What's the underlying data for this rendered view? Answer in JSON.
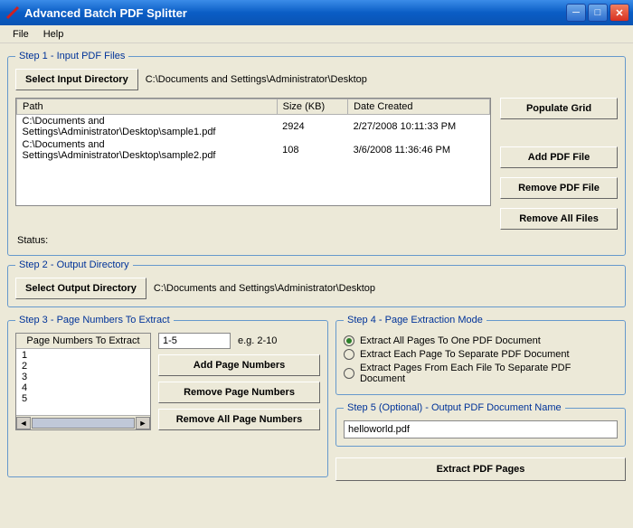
{
  "window": {
    "title": "Advanced Batch PDF Splitter"
  },
  "menu": {
    "file": "File",
    "help": "Help"
  },
  "step1": {
    "legend": "Step 1 - Input PDF Files",
    "select_btn": "Select Input Directory",
    "path": "C:\\Documents and Settings\\Administrator\\Desktop",
    "col_path": "Path",
    "col_size": "Size (KB)",
    "col_date": "Date Created",
    "rows": [
      {
        "path": "C:\\Documents and Settings\\Administrator\\Desktop\\sample1.pdf",
        "size": "2924",
        "date": "2/27/2008 10:11:33 PM"
      },
      {
        "path": "C:\\Documents and Settings\\Administrator\\Desktop\\sample2.pdf",
        "size": "108",
        "date": "3/6/2008 11:36:46 PM"
      }
    ],
    "populate": "Populate Grid",
    "add": "Add PDF File",
    "remove": "Remove PDF File",
    "remove_all": "Remove All Files",
    "status_label": "Status:"
  },
  "step2": {
    "legend": "Step 2 - Output Directory",
    "select_btn": "Select Output Directory",
    "path": "C:\\Documents and Settings\\Administrator\\Desktop"
  },
  "step3": {
    "legend": "Step 3 - Page Numbers To Extract",
    "list_header": "Page Numbers To Extract",
    "items": [
      "1",
      "2",
      "3",
      "4",
      "5"
    ],
    "input_value": "1-5",
    "example": "e.g. 2-10",
    "add_btn": "Add Page Numbers",
    "remove_btn": "Remove Page Numbers",
    "remove_all_btn": "Remove All Page Numbers"
  },
  "step4": {
    "legend": "Step 4 - Page Extraction Mode",
    "opt1": "Extract All Pages To One PDF Document",
    "opt2": "Extract Each Page To Separate PDF Document",
    "opt3": "Extract Pages From Each File To Separate PDF Document",
    "selected": 0
  },
  "step5": {
    "legend": "Step 5 (Optional) - Output PDF Document Name",
    "value": "helloworld.pdf"
  },
  "extract_btn": "Extract PDF Pages"
}
